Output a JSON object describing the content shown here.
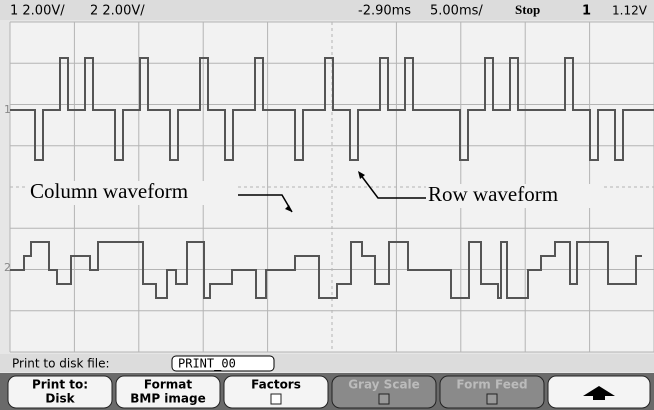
{
  "status_bar": {
    "ch1_scale": "1 2.00V/",
    "ch2_scale": "2 2.00V/",
    "delay": "-2.90ms",
    "timebase": "5.00ms/",
    "run_state": "Stop",
    "trigger_source": "1",
    "trigger_level": "1.12V"
  },
  "annotations": {
    "column": "Column waveform",
    "row": "Row waveform"
  },
  "print_line": {
    "label": "Print to disk file:",
    "filename": "PRINT_00"
  },
  "softkeys": [
    {
      "line1": "Print to:",
      "line2": "Disk"
    },
    {
      "line1": "Format",
      "line2": "BMP image"
    },
    {
      "line1": "Factors"
    },
    {
      "line1": "Gray Scale"
    },
    {
      "line1": "Form Feed"
    }
  ]
}
